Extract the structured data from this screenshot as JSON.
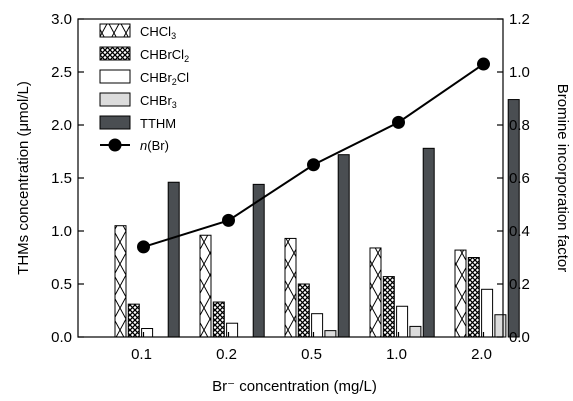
{
  "chart_data": {
    "type": "bar",
    "categories": [
      "0.1",
      "0.2",
      "0.5",
      "1.0",
      "2.0"
    ],
    "xlabel": "Br⁻ concentration (mg/L)",
    "ylabel": "THMs concentration (μmol/L)",
    "y2label": "Bromine incorporation factor",
    "ylim": [
      0,
      3.0
    ],
    "y2lim": [
      0,
      1.2
    ],
    "yticks": [
      "0.0",
      "0.5",
      "1.0",
      "1.5",
      "2.0",
      "2.5",
      "3.0"
    ],
    "y2ticks": [
      "0.0",
      "0.2",
      "0.4",
      "0.6",
      "0.8",
      "1.0",
      "1.2"
    ],
    "legend_position": "top-left",
    "series": [
      {
        "name": "CHCl₃",
        "label_parts": [
          "CHCl",
          "3",
          ""
        ],
        "pattern": "cross",
        "values": [
          1.05,
          0.96,
          0.93,
          0.84,
          0.82
        ]
      },
      {
        "name": "CHBrCl₂",
        "label_parts": [
          "CHBrCl",
          "2",
          ""
        ],
        "pattern": "dense-cross",
        "values": [
          0.31,
          0.33,
          0.5,
          0.57,
          0.75
        ]
      },
      {
        "name": "CHBr₂Cl",
        "label_parts": [
          "CHBr",
          "2",
          "Cl"
        ],
        "pattern": "white",
        "values": [
          0.08,
          0.13,
          0.22,
          0.29,
          0.45
        ]
      },
      {
        "name": "CHBr₃",
        "label_parts": [
          "CHBr",
          "3",
          ""
        ],
        "pattern": "light-gray",
        "values": [
          0.0,
          0.0,
          0.06,
          0.1,
          0.21
        ]
      },
      {
        "name": "TTHM",
        "label_parts": [
          "TTHM",
          "",
          ""
        ],
        "pattern": "dark-gray",
        "values": [
          1.46,
          1.44,
          1.72,
          1.78,
          2.24
        ]
      }
    ],
    "line_series": {
      "name": "n(Br)",
      "label_italic": "n",
      "label_rest": "(Br)",
      "axis": "right",
      "values": [
        0.34,
        0.44,
        0.65,
        0.81,
        1.03
      ]
    },
    "colors": {
      "dark_gray": "#4a4e52",
      "light_gray": "#dcdcdc",
      "line": "#000000"
    }
  }
}
